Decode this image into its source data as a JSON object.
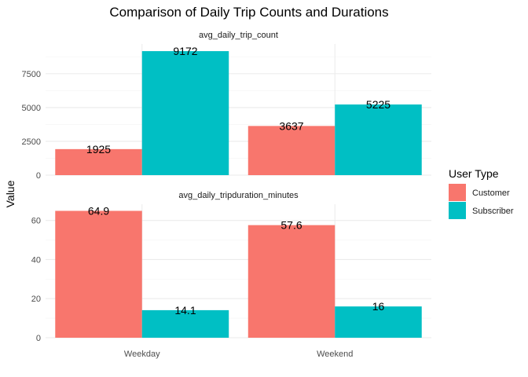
{
  "chart_data": {
    "type": "bar",
    "title": "Comparison of Daily Trip Counts and Durations",
    "ylabel": "Value",
    "xlabel": "",
    "categories": [
      "Weekday",
      "Weekend"
    ],
    "legend": {
      "title": "User Type",
      "position": "right",
      "entries": [
        {
          "name": "Customer",
          "color": "#F8766D"
        },
        {
          "name": "Subscriber",
          "color": "#00BFC4"
        }
      ]
    },
    "grid": true,
    "panels": [
      {
        "strip": "avg_daily_trip_count",
        "ylim": [
          0,
          9700
        ],
        "yticks": [
          0,
          2500,
          5000,
          7500
        ],
        "series": [
          {
            "name": "Customer",
            "values": [
              1925,
              3637
            ],
            "labels": [
              "1925",
              "3637"
            ]
          },
          {
            "name": "Subscriber",
            "values": [
              9172,
              5225
            ],
            "labels": [
              "9172",
              "5225"
            ]
          }
        ]
      },
      {
        "strip": "avg_daily_tripduration_minutes",
        "ylim": [
          0,
          68.3
        ],
        "yticks": [
          0,
          20,
          40,
          60
        ],
        "series": [
          {
            "name": "Customer",
            "values": [
              64.9,
              57.6
            ],
            "labels": [
              "64.9",
              "57.6"
            ]
          },
          {
            "name": "Subscriber",
            "values": [
              14.1,
              16
            ],
            "labels": [
              "14.1",
              "16"
            ]
          }
        ]
      }
    ]
  }
}
